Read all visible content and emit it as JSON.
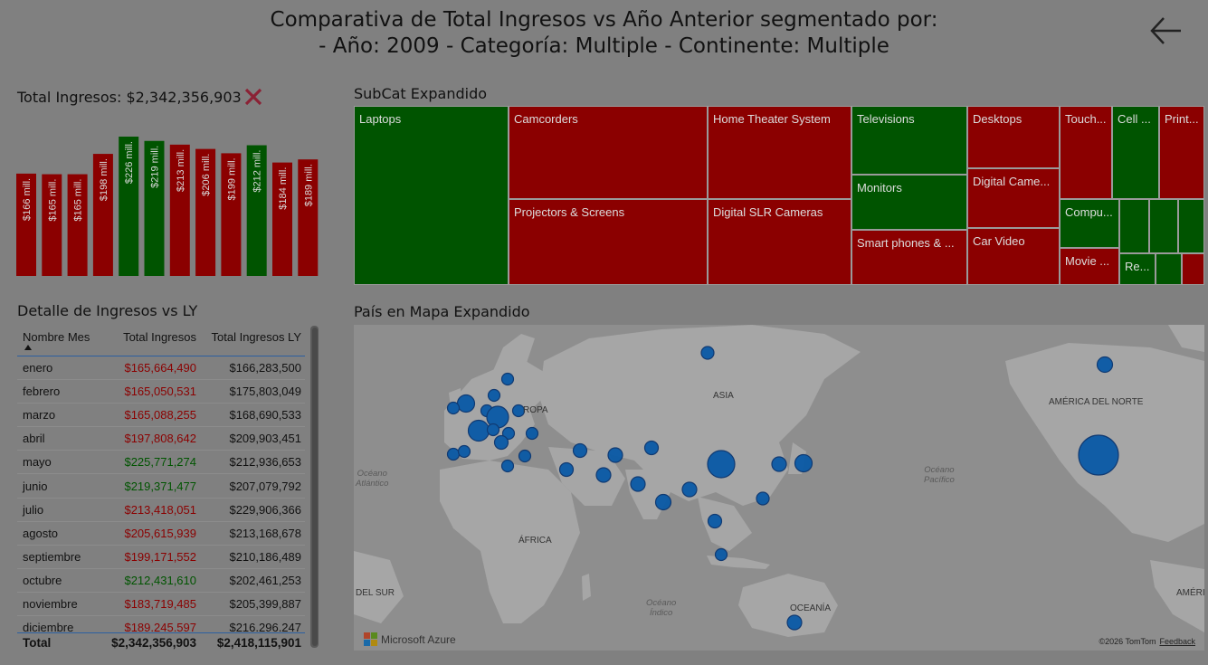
{
  "header": {
    "title_line1": "Comparativa de Total Ingresos vs Año Anterior segmentado por:",
    "title_line2": "- Año: 2009 - Categoría: Multiple - Continente: Multiple"
  },
  "total": {
    "label": "Total Ingresos: $2,342,356,903"
  },
  "colors": {
    "positive": "#005400",
    "negative": "#8b0000",
    "background": "#808080"
  },
  "chart_data": {
    "type": "bar",
    "categories": [
      "enero",
      "febrero",
      "marzo",
      "abril",
      "mayo",
      "junio",
      "julio",
      "agosto",
      "septiembre",
      "octubre",
      "noviembre",
      "diciembre"
    ],
    "values": [
      166,
      165,
      165,
      198,
      226,
      219,
      213,
      206,
      199,
      212,
      184,
      189
    ],
    "labels": [
      "$166 mill.",
      "$165 mill.",
      "$165 mill.",
      "$198 mill.",
      "$226 mill.",
      "$219 mill.",
      "$213 mill.",
      "$206 mill.",
      "$199 mill.",
      "$212 mill.",
      "$184 mill.",
      "$189 mill."
    ],
    "status": [
      "neg",
      "neg",
      "neg",
      "neg",
      "pos",
      "pos",
      "neg",
      "neg",
      "neg",
      "pos",
      "neg",
      "neg"
    ],
    "ylim": [
      0,
      226
    ],
    "grid": false
  },
  "table": {
    "title": "Detalle de Ingresos vs LY",
    "headers": [
      "Nombre Mes",
      "Total Ingresos",
      "Total Ingresos LY"
    ],
    "rows": [
      {
        "mes": "enero",
        "ingresos": "$165,664,490",
        "ly": "$166,283,500",
        "status": "neg"
      },
      {
        "mes": "febrero",
        "ingresos": "$165,050,531",
        "ly": "$175,803,049",
        "status": "neg"
      },
      {
        "mes": "marzo",
        "ingresos": "$165,088,255",
        "ly": "$168,690,533",
        "status": "neg"
      },
      {
        "mes": "abril",
        "ingresos": "$197,808,642",
        "ly": "$209,903,451",
        "status": "neg"
      },
      {
        "mes": "mayo",
        "ingresos": "$225,771,274",
        "ly": "$212,936,653",
        "status": "pos"
      },
      {
        "mes": "junio",
        "ingresos": "$219,371,477",
        "ly": "$207,079,792",
        "status": "pos"
      },
      {
        "mes": "julio",
        "ingresos": "$213,418,051",
        "ly": "$229,906,366",
        "status": "neg"
      },
      {
        "mes": "agosto",
        "ingresos": "$205,615,939",
        "ly": "$213,168,678",
        "status": "neg"
      },
      {
        "mes": "septiembre",
        "ingresos": "$199,171,552",
        "ly": "$210,186,489",
        "status": "neg"
      },
      {
        "mes": "octubre",
        "ingresos": "$212,431,610",
        "ly": "$202,461,253",
        "status": "pos"
      },
      {
        "mes": "noviembre",
        "ingresos": "$183,719,485",
        "ly": "$205,399,887",
        "status": "neg"
      },
      {
        "mes": "diciembre",
        "ingresos": "$189,245,597",
        "ly": "$216,296,247",
        "status": "neg"
      }
    ],
    "footer": {
      "label": "Total",
      "ingresos": "$2,342,356,903",
      "ly": "$2,418,115,901"
    }
  },
  "treemap": {
    "title": "SubCat Expandido",
    "tiles": [
      {
        "label": "Laptops",
        "status": "pos"
      },
      {
        "label": "Camcorders",
        "status": "neg"
      },
      {
        "label": "Projectors & Screens",
        "status": "neg"
      },
      {
        "label": "Home Theater System",
        "status": "neg"
      },
      {
        "label": "Digital SLR Cameras",
        "status": "neg"
      },
      {
        "label": "Televisions",
        "status": "pos"
      },
      {
        "label": "Monitors",
        "status": "pos"
      },
      {
        "label": "Smart phones & ...",
        "status": "neg"
      },
      {
        "label": "Desktops",
        "status": "neg"
      },
      {
        "label": "Digital Came...",
        "status": "neg"
      },
      {
        "label": "Car Video",
        "status": "neg"
      },
      {
        "label": "Touch...",
        "status": "neg"
      },
      {
        "label": "Cell ...",
        "status": "pos"
      },
      {
        "label": "Print...",
        "status": "neg"
      },
      {
        "label": "Compu...",
        "status": "pos"
      },
      {
        "label": "",
        "status": "pos"
      },
      {
        "label": "",
        "status": "pos"
      },
      {
        "label": "",
        "status": "pos"
      },
      {
        "label": "Movie ...",
        "status": "neg"
      },
      {
        "label": "Re...",
        "status": "pos"
      },
      {
        "label": "",
        "status": "pos"
      },
      {
        "label": "",
        "status": "neg"
      }
    ]
  },
  "map": {
    "title": "País en Mapa Expandido",
    "labels": {
      "europa": "ROPA",
      "asia": "ASIA",
      "america_norte": "AMÉRICA DEL NORTE",
      "africa": "ÁFRICA",
      "oceania": "OCEANÍA",
      "del_sur": "DEL SUR",
      "ameri": "AMÉRI"
    },
    "oceans": {
      "atlantic": "Océano\nAtlántico",
      "pacific": "Océano\nPacífico",
      "indian": "Océano\nÍndico"
    },
    "attribution": "Microsoft Azure",
    "copyright": "©2026 TomTom",
    "feedback": "Feedback"
  }
}
